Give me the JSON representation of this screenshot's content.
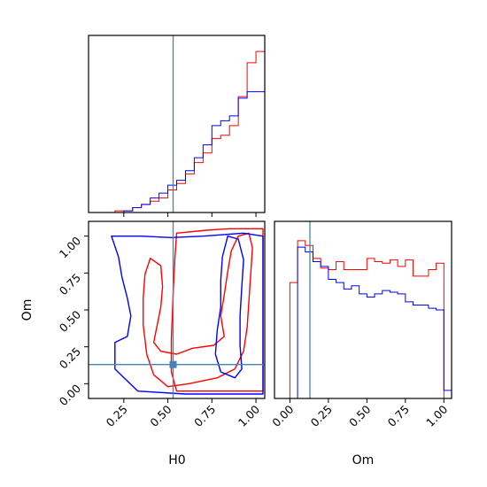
{
  "chart_data": {
    "type": "corner",
    "parameters": [
      "H0",
      "Om"
    ],
    "truth": {
      "H0": 0.53,
      "Om": 0.13
    },
    "truth_color": "#4682b4",
    "series": [
      {
        "color": "#ff0000"
      },
      {
        "color": "#0000ff"
      }
    ],
    "panels": [
      {
        "id": "H0-marginal",
        "type": "histogram",
        "param": "H0",
        "xlim": [
          0.05,
          1.05
        ],
        "ylim": [
          0,
          1.1
        ],
        "ticks_shown": false,
        "bins": [
          0.05,
          0.1,
          0.15,
          0.2,
          0.25,
          0.3,
          0.35,
          0.4,
          0.45,
          0.5,
          0.55,
          0.6,
          0.65,
          0.7,
          0.75,
          0.8,
          0.85,
          0.9,
          0.95,
          1.0,
          1.05
        ],
        "series_values": [
          [
            0.0,
            0.0,
            0.0,
            0.01,
            0.01,
            0.03,
            0.05,
            0.07,
            0.09,
            0.14,
            0.18,
            0.24,
            0.31,
            0.37,
            0.46,
            0.48,
            0.54,
            0.72,
            0.93,
            1.0
          ],
          [
            0.0,
            0.0,
            0.0,
            0.0,
            0.01,
            0.03,
            0.05,
            0.09,
            0.12,
            0.17,
            0.2,
            0.26,
            0.34,
            0.42,
            0.54,
            0.57,
            0.6,
            0.71,
            0.75,
            0.75
          ]
        ]
      },
      {
        "id": "H0-Om-contour",
        "type": "contour",
        "xparam": "H0",
        "yparam": "Om",
        "xlim": [
          0.05,
          1.05
        ],
        "ylim": [
          -0.1,
          1.1
        ],
        "xticks": [
          "0.25",
          "0.50",
          "0.75",
          "1.00"
        ],
        "xtick_values": [
          0.25,
          0.5,
          0.75,
          1.0
        ],
        "yticks": [
          "0.00",
          "0.25",
          "0.50",
          "0.75",
          "1.00"
        ],
        "ytick_values": [
          0.0,
          0.25,
          0.5,
          0.75,
          1.0
        ],
        "xlabel": "H0",
        "ylabel": "Om",
        "contours": [
          {
            "series": 0,
            "level": "outer",
            "points": [
              [
                0.55,
                1.02
              ],
              [
                0.72,
                1.04
              ],
              [
                0.85,
                1.05
              ],
              [
                1.04,
                1.05
              ],
              [
                1.04,
                -0.05
              ],
              [
                0.55,
                -0.05
              ],
              [
                0.52,
                0.08
              ],
              [
                0.52,
                0.3
              ],
              [
                0.53,
                0.6
              ],
              [
                0.54,
                0.85
              ]
            ]
          },
          {
            "series": 0,
            "level": "inner",
            "points": [
              [
                0.4,
                0.85
              ],
              [
                0.46,
                0.8
              ],
              [
                0.47,
                0.66
              ],
              [
                0.46,
                0.52
              ],
              [
                0.44,
                0.4
              ],
              [
                0.42,
                0.28
              ],
              [
                0.46,
                0.22
              ],
              [
                0.55,
                0.2
              ],
              [
                0.64,
                0.24
              ],
              [
                0.76,
                0.26
              ],
              [
                0.82,
                0.32
              ],
              [
                0.8,
                0.46
              ],
              [
                0.82,
                0.6
              ],
              [
                0.84,
                0.76
              ],
              [
                0.86,
                0.9
              ],
              [
                0.9,
                1.0
              ],
              [
                0.96,
                1.02
              ],
              [
                0.98,
                0.92
              ],
              [
                0.97,
                0.74
              ],
              [
                0.96,
                0.56
              ],
              [
                0.95,
                0.38
              ],
              [
                0.93,
                0.22
              ],
              [
                0.88,
                0.1
              ],
              [
                0.78,
                0.04
              ],
              [
                0.62,
                0.0
              ],
              [
                0.5,
                -0.02
              ],
              [
                0.42,
                0.06
              ],
              [
                0.38,
                0.2
              ],
              [
                0.36,
                0.4
              ],
              [
                0.36,
                0.58
              ],
              [
                0.37,
                0.74
              ]
            ]
          },
          {
            "series": 1,
            "level": "outer",
            "points": [
              [
                0.18,
                1.0
              ],
              [
                0.35,
                1.0
              ],
              [
                0.52,
                0.99
              ],
              [
                0.7,
                1.0
              ],
              [
                0.93,
                1.02
              ],
              [
                1.04,
                1.0
              ],
              [
                1.04,
                -0.07
              ],
              [
                0.6,
                -0.07
              ],
              [
                0.33,
                -0.05
              ],
              [
                0.2,
                0.1
              ],
              [
                0.2,
                0.28
              ],
              [
                0.27,
                0.32
              ],
              [
                0.29,
                0.46
              ],
              [
                0.27,
                0.58
              ],
              [
                0.24,
                0.72
              ],
              [
                0.22,
                0.86
              ]
            ]
          },
          {
            "series": 1,
            "level": "inner",
            "points": [
              [
                0.84,
                1.0
              ],
              [
                0.9,
                0.98
              ],
              [
                0.93,
                0.84
              ],
              [
                0.92,
                0.66
              ],
              [
                0.91,
                0.46
              ],
              [
                0.91,
                0.26
              ],
              [
                0.92,
                0.1
              ],
              [
                0.88,
                0.04
              ],
              [
                0.8,
                0.08
              ],
              [
                0.77,
                0.2
              ],
              [
                0.78,
                0.36
              ],
              [
                0.8,
                0.52
              ],
              [
                0.8,
                0.7
              ],
              [
                0.81,
                0.86
              ]
            ]
          }
        ]
      },
      {
        "id": "Om-marginal",
        "type": "histogram",
        "param": "Om",
        "xlim": [
          -0.1,
          1.05
        ],
        "ylim": [
          0,
          1.1
        ],
        "xticks": [
          "0.00",
          "0.25",
          "0.50",
          "0.75",
          "1.00"
        ],
        "xtick_values": [
          0.0,
          0.25,
          0.5,
          0.75,
          1.0
        ],
        "xlabel": "Om",
        "bins": [
          -0.05,
          0.0,
          0.05,
          0.1,
          0.15,
          0.2,
          0.25,
          0.3,
          0.35,
          0.4,
          0.45,
          0.5,
          0.55,
          0.6,
          0.65,
          0.7,
          0.75,
          0.8,
          0.85,
          0.9,
          0.95,
          1.0,
          1.05
        ],
        "series_values": [
          [
            0.0,
            0.72,
            0.98,
            0.95,
            0.87,
            0.81,
            0.8,
            0.85,
            0.8,
            0.8,
            0.8,
            0.87,
            0.85,
            0.84,
            0.86,
            0.82,
            0.86,
            0.76,
            0.76,
            0.8,
            0.84,
            0.0
          ],
          [
            0.0,
            0.0,
            0.94,
            0.91,
            0.85,
            0.82,
            0.74,
            0.72,
            0.68,
            0.7,
            0.65,
            0.63,
            0.65,
            0.67,
            0.66,
            0.65,
            0.6,
            0.58,
            0.58,
            0.56,
            0.55,
            0.05
          ]
        ]
      }
    ]
  }
}
